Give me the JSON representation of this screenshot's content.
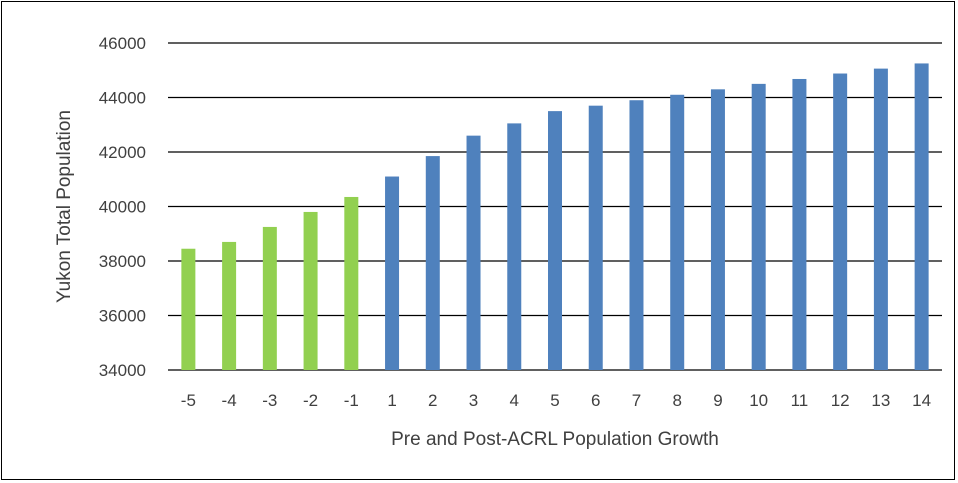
{
  "chart_data": {
    "type": "bar",
    "title": "",
    "xlabel": "Pre and Post-ACRL Population Growth",
    "ylabel": "Yukon Total Population",
    "categories": [
      "-5",
      "-4",
      "-3",
      "-2",
      "-1",
      "1",
      "2",
      "3",
      "4",
      "5",
      "6",
      "7",
      "8",
      "9",
      "10",
      "11",
      "12",
      "13",
      "14"
    ],
    "values": [
      38450,
      38700,
      39250,
      39800,
      40350,
      41100,
      41850,
      42600,
      43050,
      43500,
      43700,
      43900,
      44100,
      44300,
      44500,
      44680,
      44880,
      45060,
      45250
    ],
    "bar_colors": [
      "#92D050",
      "#92D050",
      "#92D050",
      "#92D050",
      "#92D050",
      "#4F81BD",
      "#4F81BD",
      "#4F81BD",
      "#4F81BD",
      "#4F81BD",
      "#4F81BD",
      "#4F81BD",
      "#4F81BD",
      "#4F81BD",
      "#4F81BD",
      "#4F81BD",
      "#4F81BD",
      "#4F81BD",
      "#4F81BD"
    ],
    "pre_color": "#92D050",
    "post_color": "#4F81BD",
    "ylim": [
      34000,
      46000
    ],
    "yticks": [
      34000,
      36000,
      38000,
      40000,
      42000,
      44000,
      46000
    ],
    "ytick_labels": [
      "34000",
      "36000",
      "38000",
      "40000",
      "42000",
      "44000",
      "46000"
    ],
    "grid": true,
    "legend": "none"
  }
}
